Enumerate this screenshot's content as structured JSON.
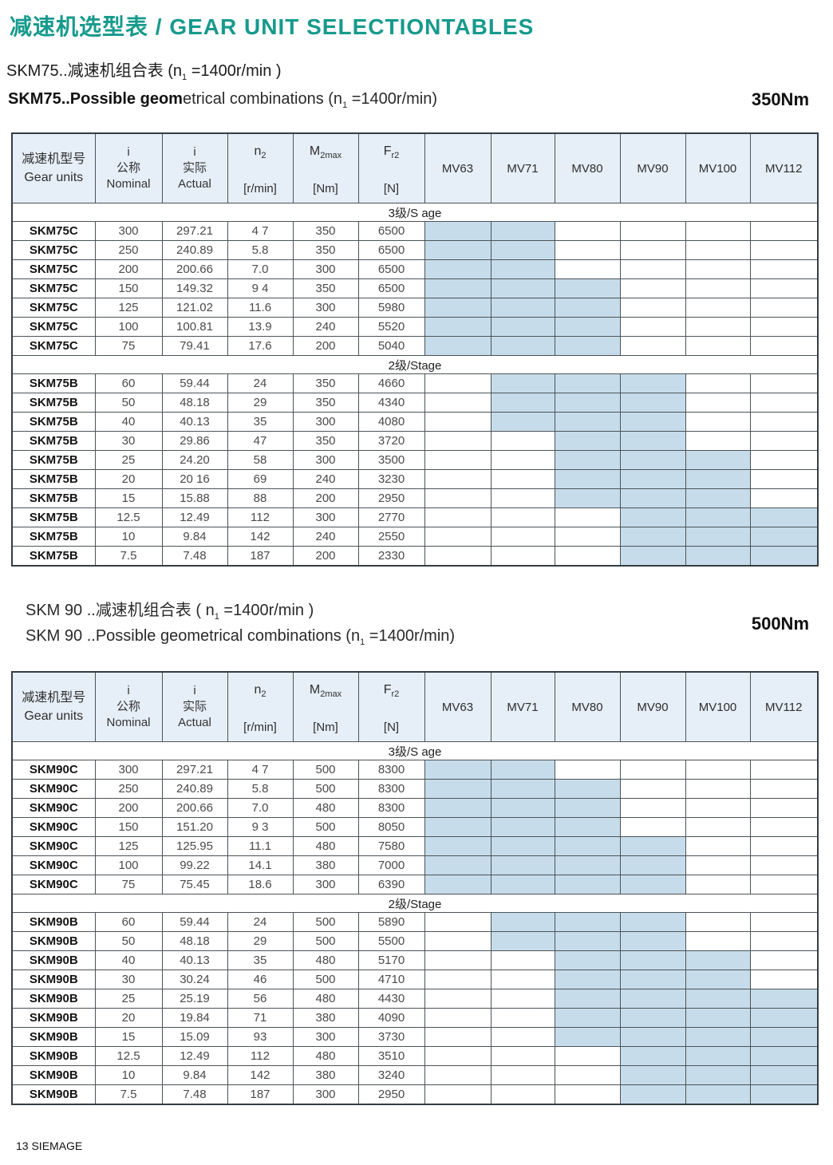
{
  "page": {
    "title": "减速机选型表 / GEAR UNIT SELECTIONTABLES",
    "footer": "13 SIEMAGE"
  },
  "colors": {
    "accent_teal": "#169a8c",
    "header_bg": "#e6eff8",
    "shaded_cell": "#c7dcea"
  },
  "table_header": {
    "gear_units": {
      "line1": "减速机型号",
      "line2": "Gear units"
    },
    "nominal": {
      "line1": "i",
      "line2": "公称",
      "line3": "Nominal"
    },
    "actual": {
      "line1": "i",
      "line2": "实际",
      "line3": "Actual"
    },
    "n2": {
      "sym": "n",
      "sub": "2",
      "unit": "[r/min]"
    },
    "m2max": {
      "sym": "M",
      "sub": "2max",
      "unit": "[Nm]"
    },
    "fr2": {
      "sym": "F",
      "sub": "r2",
      "unit": "[N]"
    },
    "mv_columns": [
      "MV63",
      "MV71",
      "MV80",
      "MV90",
      "MV100",
      "MV112"
    ]
  },
  "tables": [
    {
      "heading_cn": {
        "pre": "SKM75..减速机组合表 (n",
        "sub": "1",
        "post": " =1400r/min )"
      },
      "heading_en": {
        "bold": "SKM75..Possible geom",
        "pre": "etrical combinations  (n",
        "sub": "1",
        "post": " =1400r/min)"
      },
      "torque": "350Nm",
      "sections": [
        {
          "label": "3级/S age",
          "rows": [
            {
              "model": "SKM75C",
              "nominal": "300",
              "actual": "297.21",
              "n2": "4 7",
              "m2max": "350",
              "fr2": "6500",
              "mv": [
                1,
                1,
                0,
                0,
                0,
                0
              ]
            },
            {
              "model": "SKM75C",
              "nominal": "250",
              "actual": "240.89",
              "n2": "5.8",
              "m2max": "350",
              "fr2": "6500",
              "mv": [
                1,
                1,
                0,
                0,
                0,
                0
              ]
            },
            {
              "model": "SKM75C",
              "nominal": "200",
              "actual": "200.66",
              "n2": "7.0",
              "m2max": "300",
              "fr2": "6500",
              "mv": [
                1,
                1,
                0,
                0,
                0,
                0
              ]
            },
            {
              "model": "SKM75C",
              "nominal": "150",
              "actual": "149.32",
              "n2": "9 4",
              "m2max": "350",
              "fr2": "6500",
              "mv": [
                1,
                1,
                1,
                0,
                0,
                0
              ]
            },
            {
              "model": "SKM75C",
              "nominal": "125",
              "actual": "121.02",
              "n2": "11.6",
              "m2max": "300",
              "fr2": "5980",
              "mv": [
                1,
                1,
                1,
                0,
                0,
                0
              ]
            },
            {
              "model": "SKM75C",
              "nominal": "100",
              "actual": "100.81",
              "n2": "13.9",
              "m2max": "240",
              "fr2": "5520",
              "mv": [
                1,
                1,
                1,
                0,
                0,
                0
              ]
            },
            {
              "model": "SKM75C",
              "nominal": "75",
              "actual": "79.41",
              "n2": "17.6",
              "m2max": "200",
              "fr2": "5040",
              "mv": [
                1,
                1,
                1,
                0,
                0,
                0
              ]
            }
          ]
        },
        {
          "label": "2级/Stage",
          "rows": [
            {
              "model": "SKM75B",
              "nominal": "60",
              "actual": "59.44",
              "n2": "24",
              "m2max": "350",
              "fr2": "4660",
              "mv": [
                0,
                1,
                1,
                1,
                0,
                0
              ]
            },
            {
              "model": "SKM75B",
              "nominal": "50",
              "actual": "48.18",
              "n2": "29",
              "m2max": "350",
              "fr2": "4340",
              "mv": [
                0,
                1,
                1,
                1,
                0,
                0
              ]
            },
            {
              "model": "SKM75B",
              "nominal": "40",
              "actual": "40.13",
              "n2": "35",
              "m2max": "300",
              "fr2": "4080",
              "mv": [
                0,
                1,
                1,
                1,
                0,
                0
              ]
            },
            {
              "model": "SKM75B",
              "nominal": "30",
              "actual": "29.86",
              "n2": "47",
              "m2max": "350",
              "fr2": "3720",
              "mv": [
                0,
                0,
                1,
                1,
                0,
                0
              ]
            },
            {
              "model": "SKM75B",
              "nominal": "25",
              "actual": "24.20",
              "n2": "58",
              "m2max": "300",
              "fr2": "3500",
              "mv": [
                0,
                0,
                1,
                1,
                1,
                0
              ]
            },
            {
              "model": "SKM75B",
              "nominal": "20",
              "actual": "20 16",
              "n2": "69",
              "m2max": "240",
              "fr2": "3230",
              "mv": [
                0,
                0,
                1,
                1,
                1,
                0
              ]
            },
            {
              "model": "SKM75B",
              "nominal": "15",
              "actual": "15.88",
              "n2": "88",
              "m2max": "200",
              "fr2": "2950",
              "mv": [
                0,
                0,
                1,
                1,
                1,
                0
              ]
            },
            {
              "model": "SKM75B",
              "nominal": "12.5",
              "actual": "12.49",
              "n2": "112",
              "m2max": "300",
              "fr2": "2770",
              "mv": [
                0,
                0,
                0,
                1,
                1,
                1
              ]
            },
            {
              "model": "SKM75B",
              "nominal": "10",
              "actual": "9.84",
              "n2": "142",
              "m2max": "240",
              "fr2": "2550",
              "mv": [
                0,
                0,
                0,
                1,
                1,
                1
              ]
            },
            {
              "model": "SKM75B",
              "nominal": "7.5",
              "actual": "7.48",
              "n2": "187",
              "m2max": "200",
              "fr2": "2330",
              "mv": [
                0,
                0,
                0,
                1,
                1,
                1
              ]
            }
          ]
        }
      ]
    },
    {
      "heading_cn": {
        "pre": "SKM 90 ..减速机组合表 ( n",
        "sub": "1",
        "post": " =1400r/min )"
      },
      "heading_en": {
        "bold": "",
        "pre": "SKM 90 ..Possible geometrical combinations (n",
        "sub": "1",
        "post": " =1400r/min)"
      },
      "torque": "500Nm",
      "sections": [
        {
          "label": "3级/S age",
          "rows": [
            {
              "model": "SKM90C",
              "nominal": "300",
              "actual": "297.21",
              "n2": "4 7",
              "m2max": "500",
              "fr2": "8300",
              "mv": [
                1,
                1,
                0,
                0,
                0,
                0
              ]
            },
            {
              "model": "SKM90C",
              "nominal": "250",
              "actual": "240.89",
              "n2": "5.8",
              "m2max": "500",
              "fr2": "8300",
              "mv": [
                1,
                1,
                1,
                0,
                0,
                0
              ]
            },
            {
              "model": "SKM90C",
              "nominal": "200",
              "actual": "200.66",
              "n2": "7.0",
              "m2max": "480",
              "fr2": "8300",
              "mv": [
                1,
                1,
                1,
                0,
                0,
                0
              ]
            },
            {
              "model": "SKM90C",
              "nominal": "150",
              "actual": "151.20",
              "n2": "9 3",
              "m2max": "500",
              "fr2": "8050",
              "mv": [
                1,
                1,
                1,
                0,
                0,
                0
              ]
            },
            {
              "model": "SKM90C",
              "nominal": "125",
              "actual": "125.95",
              "n2": "11.1",
              "m2max": "480",
              "fr2": "7580",
              "mv": [
                1,
                1,
                1,
                1,
                0,
                0
              ]
            },
            {
              "model": "SKM90C",
              "nominal": "100",
              "actual": "99.22",
              "n2": "14.1",
              "m2max": "380",
              "fr2": "7000",
              "mv": [
                1,
                1,
                1,
                1,
                0,
                0
              ]
            },
            {
              "model": "SKM90C",
              "nominal": "75",
              "actual": "75.45",
              "n2": "18.6",
              "m2max": "300",
              "fr2": "6390",
              "mv": [
                1,
                1,
                1,
                1,
                0,
                0
              ]
            }
          ]
        },
        {
          "label": "2级/Stage",
          "rows": [
            {
              "model": "SKM90B",
              "nominal": "60",
              "actual": "59.44",
              "n2": "24",
              "m2max": "500",
              "fr2": "5890",
              "mv": [
                0,
                1,
                1,
                1,
                0,
                0
              ]
            },
            {
              "model": "SKM90B",
              "nominal": "50",
              "actual": "48.18",
              "n2": "29",
              "m2max": "500",
              "fr2": "5500",
              "mv": [
                0,
                1,
                1,
                1,
                0,
                0
              ]
            },
            {
              "model": "SKM90B",
              "nominal": "40",
              "actual": "40.13",
              "n2": "35",
              "m2max": "480",
              "fr2": "5170",
              "mv": [
                0,
                0,
                1,
                1,
                1,
                0
              ]
            },
            {
              "model": "SKM90B",
              "nominal": "30",
              "actual": "30.24",
              "n2": "46",
              "m2max": "500",
              "fr2": "4710",
              "mv": [
                0,
                0,
                1,
                1,
                1,
                0
              ]
            },
            {
              "model": "SKM90B",
              "nominal": "25",
              "actual": "25.19",
              "n2": "56",
              "m2max": "480",
              "fr2": "4430",
              "mv": [
                0,
                0,
                1,
                1,
                1,
                1
              ]
            },
            {
              "model": "SKM90B",
              "nominal": "20",
              "actual": "19.84",
              "n2": "71",
              "m2max": "380",
              "fr2": "4090",
              "mv": [
                0,
                0,
                1,
                1,
                1,
                1
              ]
            },
            {
              "model": "SKM90B",
              "nominal": "15",
              "actual": "15.09",
              "n2": "93",
              "m2max": "300",
              "fr2": "3730",
              "mv": [
                0,
                0,
                1,
                1,
                1,
                1
              ]
            },
            {
              "model": "SKM90B",
              "nominal": "12.5",
              "actual": "12.49",
              "n2": "112",
              "m2max": "480",
              "fr2": "3510",
              "mv": [
                0,
                0,
                0,
                1,
                1,
                1
              ]
            },
            {
              "model": "SKM90B",
              "nominal": "10",
              "actual": "9.84",
              "n2": "142",
              "m2max": "380",
              "fr2": "3240",
              "mv": [
                0,
                0,
                0,
                1,
                1,
                1
              ]
            },
            {
              "model": "SKM90B",
              "nominal": "7.5",
              "actual": "7.48",
              "n2": "187",
              "m2max": "300",
              "fr2": "2950",
              "mv": [
                0,
                0,
                0,
                1,
                1,
                1
              ]
            }
          ]
        }
      ]
    }
  ]
}
